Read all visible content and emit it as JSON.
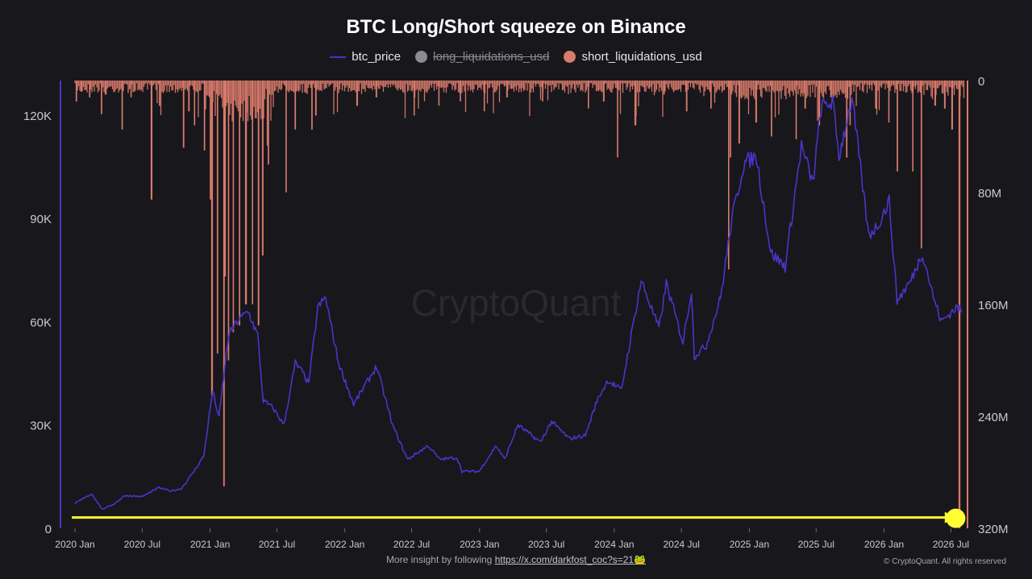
{
  "title": "BTC Long/Short squeeze on Binance",
  "legend": {
    "btc_price": "btc_price",
    "long_liquidations_usd": "long_liquidations_usd",
    "short_liquidations_usd": "short_liquidations_usd"
  },
  "colors": {
    "background": "#18171c",
    "price_line": "#4a35c9",
    "short_liquidations": "#d97b6c",
    "long_liquidations_disabled": "#8b8b93",
    "arrow": "#ffff33",
    "grid_text": "#c9c9d0",
    "watermark": "#2a2930"
  },
  "watermark": "CryptoQuant",
  "footer": {
    "prefix": "More insight by following",
    "link": "https://x.com/darkfost_coc?s=21",
    "emoji": "🐸",
    "copyright": "© CryptoQuant. All rights reserved"
  },
  "chart_data": {
    "type": "line",
    "title": "BTC Long/Short squeeze on Binance",
    "x_type": "date",
    "xlim": [
      "2020-01-01",
      "2026-08-15"
    ],
    "x_ticks": [
      {
        "label": "2020 Jan",
        "date": "2020-01-01"
      },
      {
        "label": "2020 Jul",
        "date": "2020-07-01"
      },
      {
        "label": "2021 Jan",
        "date": "2021-01-01"
      },
      {
        "label": "2021 Jul",
        "date": "2021-07-01"
      },
      {
        "label": "2022 Jan",
        "date": "2022-01-01"
      },
      {
        "label": "2022 Jul",
        "date": "2022-07-01"
      },
      {
        "label": "2023 Jan",
        "date": "2023-01-01"
      },
      {
        "label": "2023 Jul",
        "date": "2023-07-01"
      },
      {
        "label": "2024 Jan",
        "date": "2024-01-01"
      },
      {
        "label": "2024 Jul",
        "date": "2024-07-01"
      },
      {
        "label": "2025 Jan",
        "date": "2025-01-01"
      },
      {
        "label": "2025 Jul",
        "date": "2025-07-01"
      },
      {
        "label": "2026 Jan",
        "date": "2026-01-01"
      },
      {
        "label": "2026 Jul",
        "date": "2026-07-01"
      }
    ],
    "y_left": {
      "ylim": [
        0,
        130000
      ],
      "ticks": [
        {
          "value": 0,
          "label": "0"
        },
        {
          "value": 30000,
          "label": "30K"
        },
        {
          "value": 60000,
          "label": "60K"
        },
        {
          "value": 90000,
          "label": "90K"
        },
        {
          "value": 120000,
          "label": "120K"
        }
      ]
    },
    "y_right": {
      "ylim": [
        0,
        320000000
      ],
      "inverted": true,
      "ticks": [
        {
          "value": 0,
          "label": "0"
        },
        {
          "value": 80000000,
          "label": "80M"
        },
        {
          "value": 160000000,
          "label": "160M"
        },
        {
          "value": 240000000,
          "label": "240M"
        },
        {
          "value": 320000000,
          "label": "320M"
        }
      ]
    },
    "grid": false,
    "legend_position": "top",
    "series": [
      {
        "name": "btc_price",
        "axis": "left",
        "points": [
          [
            "2020-01-01",
            7200
          ],
          [
            "2020-02-15",
            10000
          ],
          [
            "2020-03-15",
            5500
          ],
          [
            "2020-04-15",
            7000
          ],
          [
            "2020-05-15",
            9500
          ],
          [
            "2020-07-01",
            9200
          ],
          [
            "2020-08-15",
            11800
          ],
          [
            "2020-09-15",
            10800
          ],
          [
            "2020-10-15",
            11500
          ],
          [
            "2020-11-15",
            16000
          ],
          [
            "2020-12-15",
            21000
          ],
          [
            "2021-01-08",
            40000
          ],
          [
            "2021-01-25",
            32000
          ],
          [
            "2021-02-20",
            56000
          ],
          [
            "2021-03-15",
            60000
          ],
          [
            "2021-04-14",
            63000
          ],
          [
            "2021-05-10",
            56000
          ],
          [
            "2021-05-25",
            37000
          ],
          [
            "2021-06-20",
            35000
          ],
          [
            "2021-07-20",
            30000
          ],
          [
            "2021-08-20",
            48000
          ],
          [
            "2021-09-10",
            45000
          ],
          [
            "2021-09-25",
            42000
          ],
          [
            "2021-10-20",
            64000
          ],
          [
            "2021-11-10",
            67000
          ],
          [
            "2021-12-15",
            48000
          ],
          [
            "2022-01-25",
            36000
          ],
          [
            "2022-03-28",
            47000
          ],
          [
            "2022-05-10",
            30000
          ],
          [
            "2022-06-20",
            20000
          ],
          [
            "2022-08-15",
            24000
          ],
          [
            "2022-09-15",
            20000
          ],
          [
            "2022-11-01",
            20500
          ],
          [
            "2022-11-15",
            16500
          ],
          [
            "2022-12-31",
            16500
          ],
          [
            "2023-02-15",
            24000
          ],
          [
            "2023-03-10",
            20000
          ],
          [
            "2023-04-15",
            30000
          ],
          [
            "2023-06-15",
            25000
          ],
          [
            "2023-07-15",
            31000
          ],
          [
            "2023-09-01",
            26000
          ],
          [
            "2023-10-15",
            27000
          ],
          [
            "2023-11-15",
            37000
          ],
          [
            "2023-12-15",
            43000
          ],
          [
            "2024-01-20",
            40000
          ],
          [
            "2024-03-14",
            72000
          ],
          [
            "2024-05-01",
            58000
          ],
          [
            "2024-05-21",
            71000
          ],
          [
            "2024-07-05",
            54000
          ],
          [
            "2024-07-28",
            69000
          ],
          [
            "2024-08-05",
            50000
          ],
          [
            "2024-09-06",
            53000
          ],
          [
            "2024-10-15",
            67000
          ],
          [
            "2024-11-15",
            90000
          ],
          [
            "2024-12-17",
            106000
          ],
          [
            "2025-01-20",
            108000
          ],
          [
            "2025-02-28",
            80000
          ],
          [
            "2025-04-08",
            76000
          ],
          [
            "2025-05-22",
            111000
          ],
          [
            "2025-06-22",
            100000
          ],
          [
            "2025-07-14",
            122000
          ],
          [
            "2025-08-14",
            124000
          ],
          [
            "2025-09-01",
            108000
          ],
          [
            "2025-10-06",
            125000
          ],
          [
            "2025-11-20",
            85000
          ],
          [
            "2025-12-15",
            88000
          ],
          [
            "2026-01-15",
            95000
          ],
          [
            "2026-02-05",
            66000
          ],
          [
            "2026-03-15",
            72000
          ],
          [
            "2026-04-15",
            80000
          ],
          [
            "2026-05-15",
            67000
          ],
          [
            "2026-06-05",
            60000
          ],
          [
            "2026-07-15",
            64000
          ],
          [
            "2026-08-01",
            63000
          ]
        ]
      },
      {
        "name": "long_liquidations_usd",
        "axis": "right",
        "hidden": true,
        "points": []
      },
      {
        "name": "short_liquidations_usd",
        "axis": "right",
        "spikes": [
          [
            "2020-01-05",
            15000000
          ],
          [
            "2020-01-18",
            8000000
          ],
          [
            "2020-02-10",
            12000000
          ],
          [
            "2020-03-13",
            24000000
          ],
          [
            "2020-03-25",
            10000000
          ],
          [
            "2020-05-08",
            35000000
          ],
          [
            "2020-06-01",
            12000000
          ],
          [
            "2020-07-27",
            85000000
          ],
          [
            "2020-08-17",
            18000000
          ],
          [
            "2020-10-21",
            48000000
          ],
          [
            "2020-11-05",
            22000000
          ],
          [
            "2020-11-20",
            32000000
          ],
          [
            "2020-12-17",
            50000000
          ],
          [
            "2021-01-02",
            85000000
          ],
          [
            "2021-01-07",
            225000000
          ],
          [
            "2021-01-21",
            195000000
          ],
          [
            "2021-02-08",
            290000000
          ],
          [
            "2021-02-11",
            140000000
          ],
          [
            "2021-02-20",
            200000000
          ],
          [
            "2021-03-05",
            180000000
          ],
          [
            "2021-03-22",
            175000000
          ],
          [
            "2021-04-09",
            160000000
          ],
          [
            "2021-04-26",
            160000000
          ],
          [
            "2021-05-12",
            175000000
          ],
          [
            "2021-05-24",
            125000000
          ],
          [
            "2021-06-08",
            60000000
          ],
          [
            "2021-07-26",
            80000000
          ],
          [
            "2021-08-20",
            35000000
          ],
          [
            "2021-10-04",
            35000000
          ],
          [
            "2021-10-15",
            25000000
          ],
          [
            "2022-02-04",
            18000000
          ],
          [
            "2022-03-28",
            12000000
          ],
          [
            "2022-07-08",
            25000000
          ],
          [
            "2022-09-13",
            18000000
          ],
          [
            "2022-11-10",
            15000000
          ],
          [
            "2023-01-14",
            22000000
          ],
          [
            "2023-03-17",
            12000000
          ],
          [
            "2023-06-21",
            15000000
          ],
          [
            "2023-10-23",
            20000000
          ],
          [
            "2023-12-04",
            15000000
          ],
          [
            "2024-01-10",
            55000000
          ],
          [
            "2024-02-28",
            32000000
          ],
          [
            "2024-05-15",
            10000000
          ],
          [
            "2024-07-15",
            22000000
          ],
          [
            "2024-09-19",
            20000000
          ],
          [
            "2024-11-06",
            135000000
          ],
          [
            "2024-11-11",
            55000000
          ],
          [
            "2024-12-05",
            45000000
          ],
          [
            "2025-01-20",
            30000000
          ],
          [
            "2025-03-02",
            40000000
          ],
          [
            "2025-05-08",
            42000000
          ],
          [
            "2025-06-01",
            20000000
          ],
          [
            "2025-07-10",
            32000000
          ],
          [
            "2025-08-10",
            12000000
          ],
          [
            "2025-09-22",
            55000000
          ],
          [
            "2025-10-01",
            32000000
          ],
          [
            "2025-12-10",
            20000000
          ],
          [
            "2026-01-14",
            30000000
          ],
          [
            "2026-02-06",
            65000000
          ],
          [
            "2026-03-20",
            65000000
          ],
          [
            "2026-04-12",
            120000000
          ],
          [
            "2026-05-20",
            18000000
          ],
          [
            "2026-06-15",
            20000000
          ],
          [
            "2026-07-05",
            35000000
          ],
          [
            "2026-07-25",
            320000000
          ]
        ]
      }
    ],
    "annotations": [
      {
        "type": "arrow",
        "from": "2020-01-01",
        "to": "2026-07-15",
        "right_value": 310000000
      },
      {
        "type": "marker",
        "date": "2026-07-25",
        "right_value": 310000000
      }
    ]
  }
}
